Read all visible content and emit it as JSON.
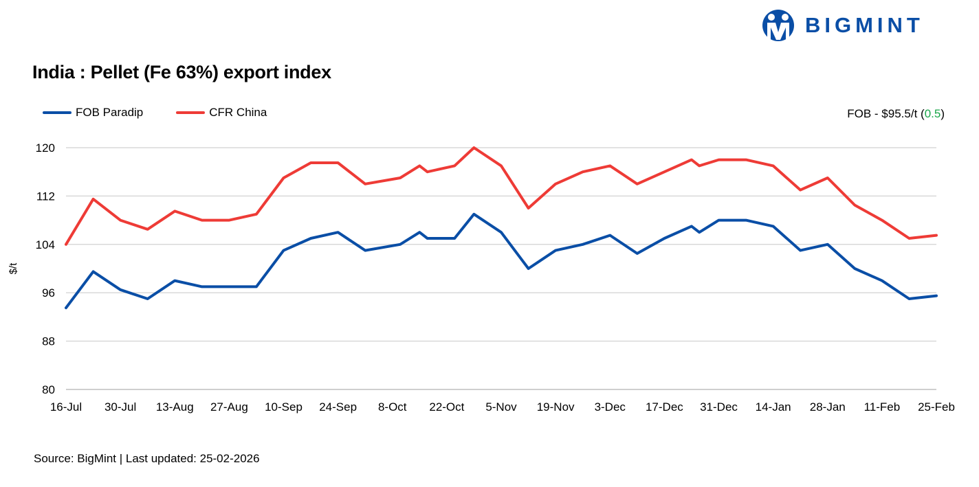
{
  "logo": {
    "text": "BIGMINT",
    "color": "#0a4ea6"
  },
  "fob_note": {
    "prefix": "FOB - $95.5/t (",
    "change": "0.5",
    "suffix": ")",
    "change_color": "#1aa64a"
  },
  "source": "Source: BigMint | Last updated: 25-02-2026",
  "chart_data": {
    "type": "line",
    "title": "India : Pellet (Fe 63%) export index",
    "xlabel": "",
    "ylabel": "$/t",
    "ylim": [
      80,
      120
    ],
    "yticks": [
      80,
      88,
      96,
      104,
      112,
      120
    ],
    "grid": true,
    "legend_placement": "top-left",
    "xtick_labels": [
      "16-Jul",
      "30-Jul",
      "13-Aug",
      "27-Aug",
      "10-Sep",
      "24-Sep",
      "8-Oct",
      "22-Oct",
      "5-Nov",
      "19-Nov",
      "3-Dec",
      "17-Dec",
      "31-Dec",
      "14-Jan",
      "28-Jan",
      "11-Feb",
      "25-Feb"
    ],
    "x": [
      "2025-07-16",
      "2025-07-23",
      "2025-07-30",
      "2025-08-06",
      "2025-08-13",
      "2025-08-20",
      "2025-08-27",
      "2025-09-03",
      "2025-09-10",
      "2025-09-17",
      "2025-09-24",
      "2025-10-01",
      "2025-10-10",
      "2025-10-15",
      "2025-10-17",
      "2025-10-24",
      "2025-10-29",
      "2025-11-05",
      "2025-11-12",
      "2025-11-19",
      "2025-11-26",
      "2025-12-03",
      "2025-12-10",
      "2025-12-17",
      "2025-12-24",
      "2025-12-26",
      "2025-12-31",
      "2026-01-07",
      "2026-01-14",
      "2026-01-21",
      "2026-01-28",
      "2026-02-04",
      "2026-02-11",
      "2026-02-18",
      "2026-02-25"
    ],
    "series": [
      {
        "name": "FOB Paradip",
        "color": "#0a4ea6",
        "values": [
          93.5,
          99.5,
          96.5,
          95,
          98,
          97,
          97,
          97,
          103,
          105,
          106,
          103,
          104,
          106,
          105,
          105,
          109,
          106,
          100,
          103,
          104,
          105.5,
          102.5,
          105,
          107,
          106,
          108,
          108,
          107,
          103,
          104,
          100,
          98,
          95,
          95.5
        ]
      },
      {
        "name": "CFR China",
        "color": "#ee3b36",
        "values": [
          104,
          111.5,
          108,
          106.5,
          109.5,
          108,
          108,
          109,
          115,
          117.5,
          117.5,
          114,
          115,
          117,
          116,
          117,
          120,
          117,
          110,
          114,
          116,
          117,
          114,
          116,
          118,
          117,
          118,
          118,
          117,
          113,
          115,
          110.5,
          108,
          105,
          105.5
        ]
      }
    ]
  }
}
